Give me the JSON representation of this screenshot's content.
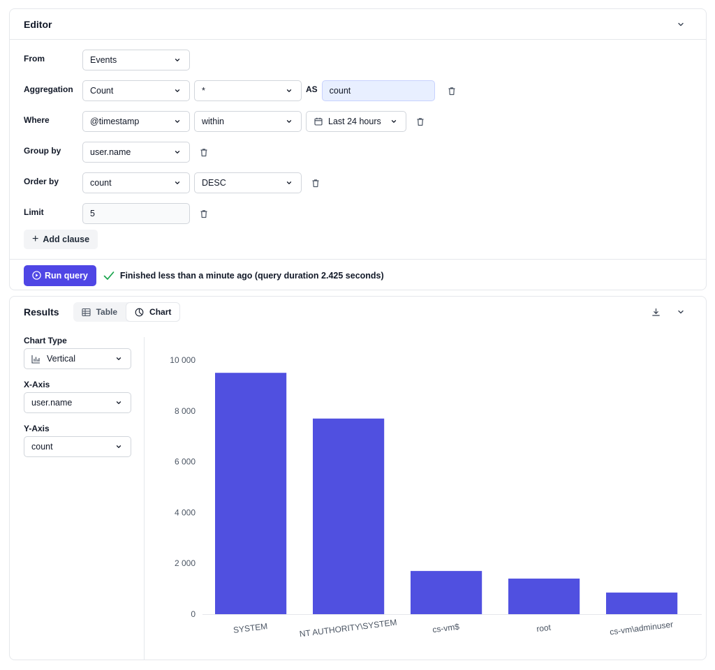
{
  "editor": {
    "title": "Editor",
    "from": {
      "label": "From",
      "value": "Events"
    },
    "aggregation": {
      "label": "Aggregation",
      "function": "Count",
      "field": "*",
      "as_label": "AS",
      "alias": "count"
    },
    "where": {
      "label": "Where",
      "field": "@timestamp",
      "operator": "within",
      "range": "Last 24 hours"
    },
    "group_by": {
      "label": "Group by",
      "field": "user.name"
    },
    "order_by": {
      "label": "Order by",
      "field": "count",
      "direction": "DESC"
    },
    "limit": {
      "label": "Limit",
      "value": "5"
    },
    "add_clause": "Add clause",
    "run_query": "Run query",
    "status": "Finished less than a minute ago (query duration 2.425 seconds)"
  },
  "results": {
    "title": "Results",
    "tabs": [
      {
        "label": "Table",
        "icon": "table-icon",
        "active": false
      },
      {
        "label": "Chart",
        "icon": "pie-chart-icon",
        "active": true
      }
    ],
    "chart_type": {
      "label": "Chart Type",
      "value": "Vertical"
    },
    "x_axis": {
      "label": "X-Axis",
      "value": "user.name"
    },
    "y_axis": {
      "label": "Y-Axis",
      "value": "count"
    }
  },
  "colors": {
    "accent": "#4f46e5",
    "bar": "#5050e0",
    "success": "#16a34a"
  },
  "chart_data": {
    "type": "bar",
    "categories": [
      "SYSTEM",
      "NT AUTHORITY\\SYSTEM",
      "cs-vm$",
      "root",
      "cs-vm\\adminuser"
    ],
    "values": [
      9500,
      7700,
      1700,
      1400,
      850
    ],
    "title": "",
    "xlabel": "",
    "ylabel": "",
    "ylim": [
      0,
      10000
    ],
    "yticks": [
      0,
      2000,
      4000,
      6000,
      8000,
      10000
    ],
    "ytick_labels": [
      "0",
      "2 000",
      "4 000",
      "6 000",
      "8 000",
      "10 000"
    ],
    "grid": false
  }
}
